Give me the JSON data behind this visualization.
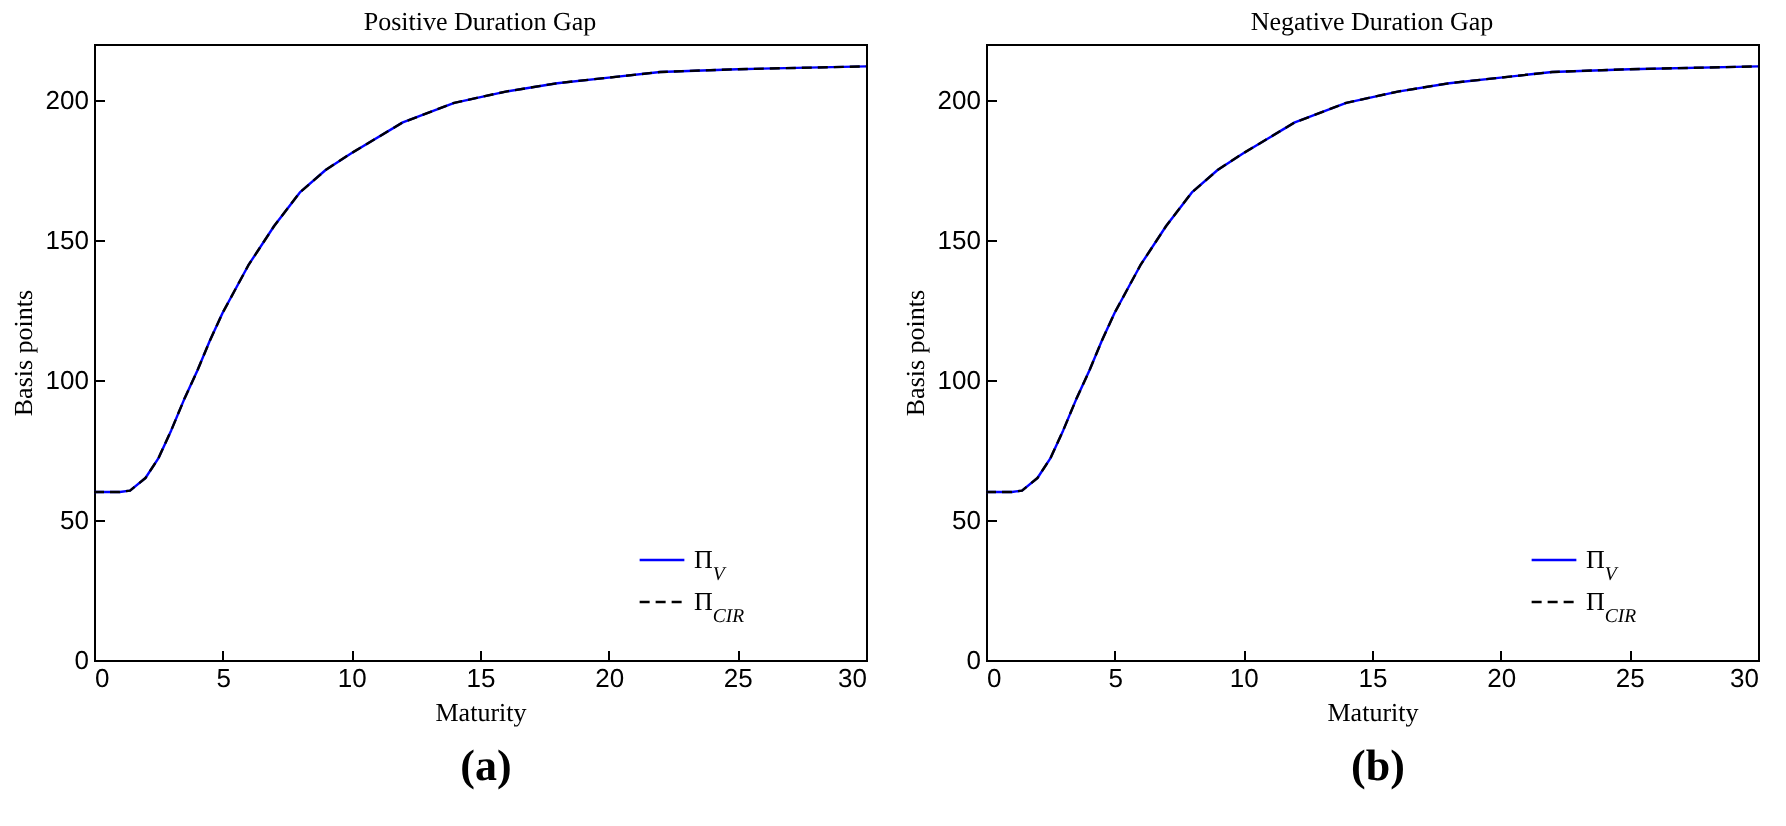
{
  "chart_data": [
    {
      "type": "line",
      "title": "Positive Duration Gap",
      "xlabel": "Maturity",
      "ylabel": "Basis points",
      "xlim": [
        0,
        30
      ],
      "ylim": [
        0,
        220
      ],
      "xticks": [
        0,
        5,
        10,
        15,
        20,
        25,
        30
      ],
      "yticks": [
        0,
        50,
        100,
        150,
        200
      ],
      "legend": "bottom right",
      "annotations": [
        "(a)"
      ],
      "x": [
        0,
        1,
        1.4,
        2,
        2.5,
        3,
        3.5,
        4,
        4.5,
        5,
        6,
        7,
        8,
        9,
        10,
        12,
        14,
        16,
        18,
        20,
        22,
        25,
        30
      ],
      "series": [
        {
          "name": "Π$_{V}$",
          "color": "#0000ff",
          "line_style": "solid",
          "values": [
            60,
            60,
            60.5,
            65,
            72,
            82,
            93,
            103,
            114,
            124,
            141,
            155,
            167,
            175,
            181,
            192,
            199,
            203,
            206,
            208,
            210,
            211,
            212
          ]
        },
        {
          "name": "Π$_{CIR}$",
          "color": "#000000",
          "line_style": "dashed",
          "values": [
            60,
            60,
            60.5,
            65,
            72,
            82,
            93,
            103,
            114,
            124,
            141,
            155,
            167,
            175,
            181,
            192,
            199,
            203,
            206,
            208,
            210,
            211,
            212
          ]
        }
      ]
    },
    {
      "type": "line",
      "title": "Negative Duration Gap",
      "xlabel": "Maturity",
      "ylabel": "Basis points",
      "xlim": [
        0,
        30
      ],
      "ylim": [
        0,
        220
      ],
      "xticks": [
        0,
        5,
        10,
        15,
        20,
        25,
        30
      ],
      "yticks": [
        0,
        50,
        100,
        150,
        200
      ],
      "legend": "bottom right",
      "annotations": [
        "(b)"
      ],
      "x": [
        0,
        1,
        1.4,
        2,
        2.5,
        3,
        3.5,
        4,
        4.5,
        5,
        6,
        7,
        8,
        9,
        10,
        12,
        14,
        16,
        18,
        20,
        22,
        25,
        30
      ],
      "series": [
        {
          "name": "Π$_{V}$",
          "color": "#0000ff",
          "line_style": "solid",
          "values": [
            60,
            60,
            60.5,
            65,
            72,
            82,
            93,
            103,
            114,
            124,
            141,
            155,
            167,
            175,
            181,
            192,
            199,
            203,
            206,
            208,
            210,
            211,
            212
          ]
        },
        {
          "name": "Π$_{CIR}$",
          "color": "#000000",
          "line_style": "dashed",
          "values": [
            60,
            60,
            60.5,
            65,
            72,
            82,
            93,
            103,
            114,
            124,
            141,
            155,
            167,
            175,
            181,
            192,
            199,
            203,
            206,
            208,
            210,
            211,
            212
          ]
        }
      ]
    }
  ]
}
